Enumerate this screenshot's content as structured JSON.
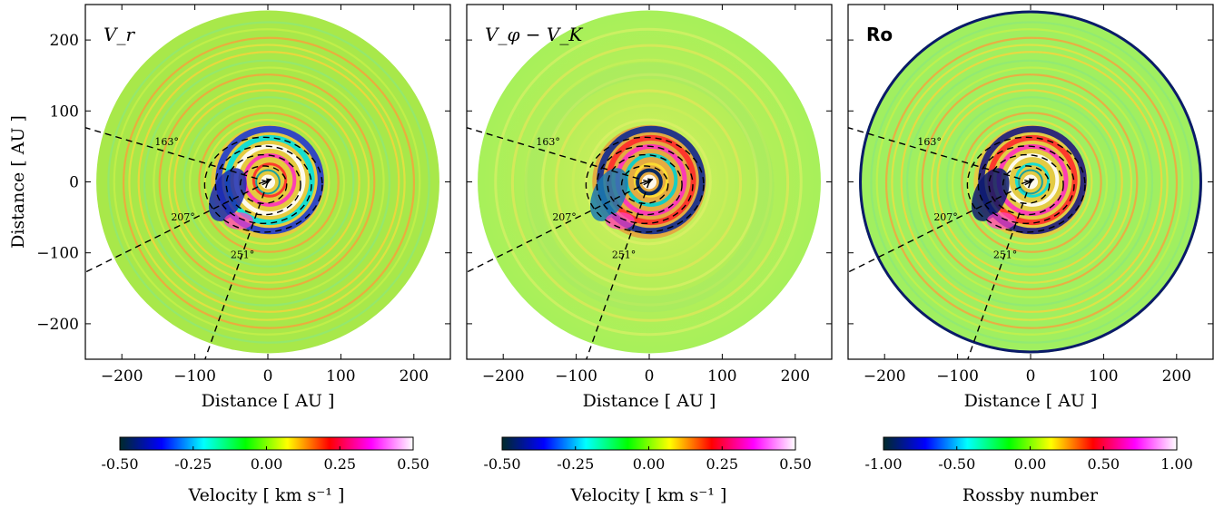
{
  "chart_data": [
    {
      "type": "heatmap",
      "panel_label": "V_r",
      "xlabel": "Distance [ AU ]",
      "ylabel": "Distance [ AU ]",
      "xlim": [
        -250,
        250
      ],
      "ylim": [
        -250,
        250
      ],
      "xticks": [
        -200,
        -100,
        0,
        100,
        200
      ],
      "yticks": [
        -200,
        -100,
        0,
        100,
        200
      ],
      "xtick_labels": [
        "−200",
        "−100",
        "0",
        "100",
        "200"
      ],
      "ytick_labels": [
        "−200",
        "−100",
        "0",
        "100",
        "200"
      ],
      "disk_outer_radius_au": 235,
      "dashed_ellipse_radii_au": [
        30,
        48,
        62,
        76
      ],
      "angle_lines_deg": [
        163,
        207,
        251
      ],
      "angle_labels": [
        "163°",
        "207°",
        "251°"
      ],
      "colorbar": {
        "label": "Velocity [ km s⁻¹ ]",
        "range": [
          -0.5,
          0.5
        ],
        "ticks": [
          "-0.50",
          "-0.25",
          "0.00",
          "0.25",
          "0.50"
        ],
        "colors": [
          "#002a2a",
          "#0000ff",
          "#00ffff",
          "#00ff00",
          "#ffff00",
          "#ff0000",
          "#ff00ff",
          "#ffffff"
        ]
      }
    },
    {
      "type": "heatmap",
      "panel_label": "V_φ − V_K",
      "xlabel": "Distance [ AU ]",
      "ylabel": "",
      "xlim": [
        -250,
        250
      ],
      "ylim": [
        -250,
        250
      ],
      "xticks": [
        -200,
        -100,
        0,
        100,
        200
      ],
      "xtick_labels": [
        "−200",
        "−100",
        "0",
        "100",
        "200"
      ],
      "disk_outer_radius_au": 235,
      "dashed_ellipse_radii_au": [
        30,
        48,
        62,
        76
      ],
      "angle_lines_deg": [
        163,
        207,
        251
      ],
      "angle_labels": [
        "163°",
        "207°",
        "251°"
      ],
      "colorbar": {
        "label": "Velocity [ km s⁻¹ ]",
        "range": [
          -0.5,
          0.5
        ],
        "ticks": [
          "-0.50",
          "-0.25",
          "0.00",
          "0.25",
          "0.50"
        ],
        "colors": [
          "#002a2a",
          "#0000ff",
          "#00ffff",
          "#00ff00",
          "#ffff00",
          "#ff0000",
          "#ff00ff",
          "#ffffff"
        ]
      }
    },
    {
      "type": "heatmap",
      "panel_label": "Ro",
      "xlabel": "Distance [ AU ]",
      "ylabel": "",
      "xlim": [
        -250,
        250
      ],
      "ylim": [
        -250,
        250
      ],
      "xticks": [
        -200,
        -100,
        0,
        100,
        200
      ],
      "xtick_labels": [
        "−200",
        "−100",
        "0",
        "100",
        "200"
      ],
      "disk_outer_radius_au": 235,
      "dashed_ellipse_radii_au": [
        30,
        48,
        62,
        76
      ],
      "angle_lines_deg": [
        163,
        207,
        251
      ],
      "angle_labels": [
        "163°",
        "207°",
        "251°"
      ],
      "colorbar": {
        "label": "Rossby number",
        "range": [
          -1.0,
          1.0
        ],
        "ticks": [
          "-1.00",
          "-0.50",
          "0.00",
          "0.50",
          "1.00"
        ],
        "colors": [
          "#002a2a",
          "#0000ff",
          "#00ffff",
          "#00ff00",
          "#ffff00",
          "#ff0000",
          "#ff00ff",
          "#ffffff"
        ]
      }
    }
  ]
}
